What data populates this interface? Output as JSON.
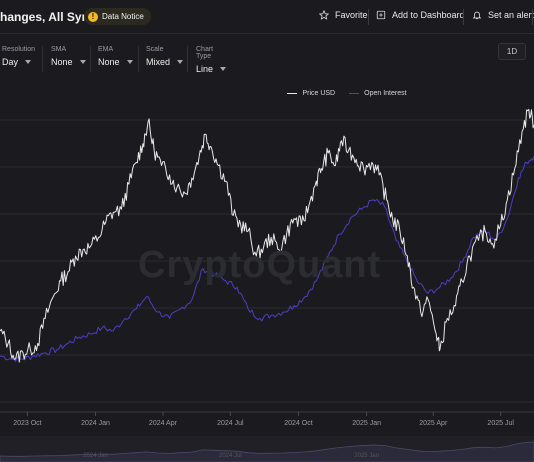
{
  "header": {
    "title": "hanges, All Symbol",
    "notice_label": "Data Notice",
    "notice_mark": "!",
    "favorite_label": "Favorite",
    "dashboard_label": "Add to Dashboard",
    "alert_label": "Set an alert"
  },
  "controls": [
    {
      "label": "Resolution",
      "value": "Day"
    },
    {
      "label": "SMA",
      "value": "None"
    },
    {
      "label": "EMA",
      "value": "None"
    },
    {
      "label": "Scale",
      "value": "Mixed"
    },
    {
      "label": "Chart Type",
      "value": "Line"
    }
  ],
  "range_button": "1D",
  "watermark": "CryptoQuant",
  "colors": {
    "price": "#e8e8e8",
    "open_interest": "#4b3fc4",
    "grid": "#2a2a30",
    "background": "#1b1b1f"
  },
  "navigator_labels": [
    "2024 Jan",
    "2024 Jul",
    "2025 Jan"
  ],
  "chart_data": {
    "type": "line",
    "legend": [
      "Price USD",
      "Open Interest"
    ],
    "legend_position": "top-center",
    "grid": true,
    "x_ticks": [
      "2023 Oct",
      "2024 Jan",
      "2024 Apr",
      "2024 Jul",
      "2024 Oct",
      "2025 Jan",
      "2025 Apr",
      "2025 Jul"
    ],
    "x_range": [
      "2023-08-25",
      "2025-08-15"
    ],
    "series": [
      {
        "name": "Price USD",
        "points": [
          [
            "2023-08-25",
            0.26
          ],
          [
            "2023-09-05",
            0.22
          ],
          [
            "2023-09-15",
            0.17
          ],
          [
            "2023-09-25",
            0.19
          ],
          [
            "2023-10-05",
            0.2
          ],
          [
            "2023-10-15",
            0.22
          ],
          [
            "2023-10-25",
            0.3
          ],
          [
            "2023-11-05",
            0.37
          ],
          [
            "2023-11-15",
            0.42
          ],
          [
            "2023-11-25",
            0.45
          ],
          [
            "2023-12-05",
            0.5
          ],
          [
            "2023-12-15",
            0.52
          ],
          [
            "2023-12-25",
            0.53
          ],
          [
            "2024-01-05",
            0.56
          ],
          [
            "2024-01-15",
            0.61
          ],
          [
            "2024-01-25",
            0.64
          ],
          [
            "2024-02-05",
            0.65
          ],
          [
            "2024-02-15",
            0.73
          ],
          [
            "2024-02-25",
            0.8
          ],
          [
            "2024-03-05",
            0.86
          ],
          [
            "2024-03-12",
            0.93
          ],
          [
            "2024-03-20",
            0.84
          ],
          [
            "2024-03-30",
            0.79
          ],
          [
            "2024-04-10",
            0.76
          ],
          [
            "2024-04-20",
            0.72
          ],
          [
            "2024-05-01",
            0.7
          ],
          [
            "2024-05-10",
            0.75
          ],
          [
            "2024-05-20",
            0.82
          ],
          [
            "2024-05-28",
            0.89
          ],
          [
            "2024-06-05",
            0.85
          ],
          [
            "2024-06-15",
            0.79
          ],
          [
            "2024-06-25",
            0.74
          ],
          [
            "2024-07-05",
            0.63
          ],
          [
            "2024-07-15",
            0.6
          ],
          [
            "2024-07-25",
            0.58
          ],
          [
            "2024-08-05",
            0.5
          ],
          [
            "2024-08-15",
            0.53
          ],
          [
            "2024-08-25",
            0.56
          ],
          [
            "2024-09-05",
            0.52
          ],
          [
            "2024-09-15",
            0.57
          ],
          [
            "2024-09-25",
            0.62
          ],
          [
            "2024-10-05",
            0.6
          ],
          [
            "2024-10-15",
            0.66
          ],
          [
            "2024-10-25",
            0.74
          ],
          [
            "2024-11-01",
            0.78
          ],
          [
            "2024-11-10",
            0.83
          ],
          [
            "2024-11-20",
            0.79
          ],
          [
            "2024-11-28",
            0.87
          ],
          [
            "2024-12-08",
            0.84
          ],
          [
            "2024-12-18",
            0.81
          ],
          [
            "2024-12-28",
            0.78
          ],
          [
            "2025-01-08",
            0.8
          ],
          [
            "2025-01-18",
            0.76
          ],
          [
            "2025-01-28",
            0.68
          ],
          [
            "2025-02-05",
            0.62
          ],
          [
            "2025-02-15",
            0.58
          ],
          [
            "2025-02-25",
            0.5
          ],
          [
            "2025-03-05",
            0.4
          ],
          [
            "2025-03-15",
            0.32
          ],
          [
            "2025-03-25",
            0.36
          ],
          [
            "2025-04-05",
            0.25
          ],
          [
            "2025-04-10",
            0.2
          ],
          [
            "2025-04-20",
            0.3
          ],
          [
            "2025-05-01",
            0.34
          ],
          [
            "2025-05-10",
            0.42
          ],
          [
            "2025-05-20",
            0.5
          ],
          [
            "2025-06-01",
            0.55
          ],
          [
            "2025-06-10",
            0.58
          ],
          [
            "2025-06-20",
            0.54
          ],
          [
            "2025-07-01",
            0.6
          ],
          [
            "2025-07-10",
            0.68
          ],
          [
            "2025-07-20",
            0.78
          ],
          [
            "2025-07-30",
            0.9
          ],
          [
            "2025-08-08",
            0.97
          ],
          [
            "2025-08-15",
            0.92
          ]
        ]
      },
      {
        "name": "Open Interest",
        "points": [
          [
            "2023-08-25",
            0.18
          ],
          [
            "2023-09-10",
            0.17
          ],
          [
            "2023-09-25",
            0.17
          ],
          [
            "2023-10-10",
            0.18
          ],
          [
            "2023-10-25",
            0.19
          ],
          [
            "2023-11-10",
            0.2
          ],
          [
            "2023-11-25",
            0.22
          ],
          [
            "2023-12-10",
            0.24
          ],
          [
            "2023-12-25",
            0.25
          ],
          [
            "2024-01-10",
            0.27
          ],
          [
            "2024-01-25",
            0.26
          ],
          [
            "2024-02-10",
            0.3
          ],
          [
            "2024-02-25",
            0.33
          ],
          [
            "2024-03-10",
            0.37
          ],
          [
            "2024-03-25",
            0.32
          ],
          [
            "2024-04-10",
            0.3
          ],
          [
            "2024-04-25",
            0.33
          ],
          [
            "2024-05-10",
            0.36
          ],
          [
            "2024-05-25",
            0.46
          ],
          [
            "2024-06-10",
            0.44
          ],
          [
            "2024-06-25",
            0.42
          ],
          [
            "2024-07-10",
            0.4
          ],
          [
            "2024-07-25",
            0.33
          ],
          [
            "2024-08-10",
            0.3
          ],
          [
            "2024-08-25",
            0.31
          ],
          [
            "2024-09-10",
            0.32
          ],
          [
            "2024-09-25",
            0.34
          ],
          [
            "2024-10-10",
            0.37
          ],
          [
            "2024-10-25",
            0.42
          ],
          [
            "2024-11-10",
            0.5
          ],
          [
            "2024-11-25",
            0.57
          ],
          [
            "2024-12-10",
            0.62
          ],
          [
            "2024-12-25",
            0.65
          ],
          [
            "2025-01-10",
            0.68
          ],
          [
            "2025-01-25",
            0.66
          ],
          [
            "2025-02-10",
            0.55
          ],
          [
            "2025-02-25",
            0.48
          ],
          [
            "2025-03-10",
            0.42
          ],
          [
            "2025-03-25",
            0.38
          ],
          [
            "2025-04-10",
            0.4
          ],
          [
            "2025-04-25",
            0.43
          ],
          [
            "2025-05-10",
            0.48
          ],
          [
            "2025-05-25",
            0.56
          ],
          [
            "2025-06-10",
            0.58
          ],
          [
            "2025-06-25",
            0.55
          ],
          [
            "2025-07-10",
            0.62
          ],
          [
            "2025-07-25",
            0.75
          ],
          [
            "2025-08-05",
            0.8
          ],
          [
            "2025-08-15",
            0.82
          ]
        ]
      }
    ]
  }
}
